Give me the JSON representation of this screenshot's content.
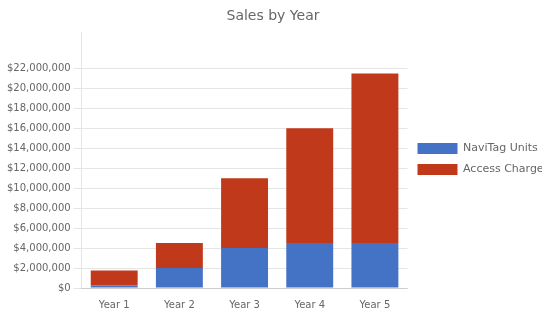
{
  "chart_data": {
    "type": "bar",
    "title": "Sales by Year",
    "categories": [
      "Year 1",
      "Year 2",
      "Year 3",
      "Year 4",
      "Year 5"
    ],
    "series": [
      {
        "name": "NaviTag Units",
        "color": "#4472C4",
        "values": [
          250000,
          2000000,
          4000000,
          4500000,
          4500000
        ]
      },
      {
        "name": "Access Charges",
        "color": "#C0391A",
        "values": [
          1500000,
          2500000,
          7000000,
          11500000,
          17000000
        ]
      }
    ],
    "stacked": true,
    "ylim": [
      0,
      25576000
    ],
    "yticks": [
      {
        "value": 0,
        "label": "$0"
      },
      {
        "value": 2000000,
        "label": "$2,000,000"
      },
      {
        "value": 4000000,
        "label": "$4,000,000"
      },
      {
        "value": 6000000,
        "label": "$6,000,000"
      },
      {
        "value": 8000000,
        "label": "$8,000,000"
      },
      {
        "value": 10000000,
        "label": "$10,000,000"
      },
      {
        "value": 12000000,
        "label": "$12,000,000"
      },
      {
        "value": 14000000,
        "label": "$14,000,000"
      },
      {
        "value": 16000000,
        "label": "$16,000,000"
      },
      {
        "value": 18000000,
        "label": "$18,000,000"
      },
      {
        "value": 20000000,
        "label": "$20,000,000"
      },
      {
        "value": 22000000,
        "label": "$22,000,000"
      }
    ],
    "grid": true,
    "legend": "right"
  }
}
